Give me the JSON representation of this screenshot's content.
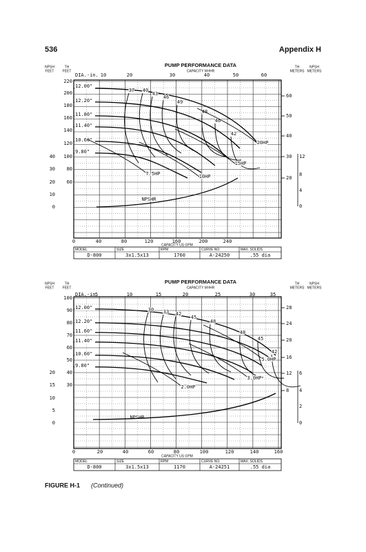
{
  "header": {
    "page_number": "536",
    "section": "Appendix H"
  },
  "charts": [
    {
      "title": "PUMP PERFORMANCE DATA",
      "subtitle": "CAPACITY M³/HR",
      "npsh_feet_header": [
        "NPSH",
        "FEET"
      ],
      "th_feet_header": [
        "TH",
        "FEET"
      ],
      "th_meters_header": [
        "TH",
        "METERS"
      ],
      "npsh_meters_header": [
        "NPSH",
        "METERS"
      ],
      "diameter_label": "DIA.-in.",
      "top_ticks": [
        "10",
        "20",
        "30",
        "40",
        "50",
        "60"
      ],
      "bottom_label": "CAPACITY US GPM",
      "bottom_ticks": [
        "0",
        "40",
        "80",
        "120",
        "160",
        "200",
        "240"
      ],
      "th_feet_ticks": [
        "220",
        "200",
        "180",
        "160",
        "140",
        "120",
        "100",
        "80",
        "60"
      ],
      "npsh_feet_ticks": [
        "40",
        "30",
        "20",
        "10",
        "0"
      ],
      "th_meters_ticks": [
        "60",
        "50",
        "40",
        "30",
        "20"
      ],
      "npsh_meters_ticks": [
        "12",
        "8",
        "4",
        "0"
      ],
      "diameters": [
        "12.00\"",
        "12.20\"",
        "11.80\"",
        "11.40\"",
        "10.60\"",
        "9.80\""
      ],
      "curve_labels": [
        "37",
        "40",
        "43",
        "46",
        "49",
        "48",
        "46",
        "42",
        "20HP",
        "15HP",
        "10HP",
        "7.5HP",
        "NPSHR"
      ],
      "table": {
        "headers": [
          "MODEL",
          "SIZE",
          "RPM",
          "CURVE NO.",
          "MAX. SOLIDS"
        ],
        "values": [
          "D-800",
          "3x1.5x13",
          "1760",
          "A-24250",
          ".55 dia"
        ]
      }
    },
    {
      "title": "PUMP PERFORMANCE DATA",
      "subtitle": "CAPACITY M³/HR",
      "npsh_feet_header": [
        "NPSH",
        "FEET"
      ],
      "th_feet_header": [
        "TH",
        "FEET"
      ],
      "th_meters_header": [
        "TH",
        "METERS"
      ],
      "npsh_meters_header": [
        "NPSH",
        "METERS"
      ],
      "diameter_label": "DIA.-in.",
      "top_ticks": [
        "5",
        "10",
        "15",
        "20",
        "25",
        "30",
        "35"
      ],
      "bottom_label": "CAPACITY US GPM",
      "bottom_ticks": [
        "0",
        "20",
        "40",
        "60",
        "80",
        "100",
        "120",
        "140",
        "160"
      ],
      "th_feet_ticks": [
        "100",
        "90",
        "80",
        "70",
        "60",
        "50",
        "40",
        "30"
      ],
      "npsh_feet_ticks": [
        "20",
        "15",
        "10",
        "5",
        "0"
      ],
      "th_meters_ticks": [
        "28",
        "24",
        "20",
        "16",
        "12",
        "8"
      ],
      "npsh_meters_ticks": [
        "6",
        "4",
        "2",
        "0"
      ],
      "diameters": [
        "12.00\"",
        "12.20\"",
        "11.60\"",
        "11.40\"",
        "10.60\"",
        "9.80\""
      ],
      "curve_labels": [
        "30",
        "33",
        "42",
        "45",
        "48",
        "48",
        "45",
        "42",
        "5.0HP",
        "3.0HP",
        "2.0HP",
        "NPSHR"
      ],
      "table": {
        "headers": [
          "MODEL",
          "SIZE",
          "RPM",
          "CURVE NO.",
          "MAX. SOLIDS"
        ],
        "values": [
          "D-800",
          "3x1.5x13",
          "1170",
          "A-24251",
          ".55 dia"
        ]
      }
    }
  ],
  "caption": {
    "label": "FIGURE H-1",
    "text": "(Continued)"
  }
}
